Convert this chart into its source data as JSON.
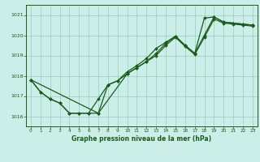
{
  "title": "Graphe pression niveau de la mer (hPa)",
  "background_color": "#cceee8",
  "grid_color": "#99ccbb",
  "line_color": "#1a5c1a",
  "xlim": [
    -0.5,
    23.5
  ],
  "ylim": [
    1015.5,
    1021.5
  ],
  "yticks": [
    1016,
    1017,
    1018,
    1019,
    1020,
    1021
  ],
  "xticks": [
    0,
    1,
    2,
    3,
    4,
    5,
    6,
    7,
    8,
    9,
    10,
    11,
    12,
    13,
    14,
    15,
    16,
    17,
    18,
    19,
    20,
    21,
    22,
    23
  ],
  "series1": [
    1017.8,
    1017.2,
    1016.85,
    1016.65,
    1016.15,
    1016.15,
    1016.15,
    1016.15,
    1017.55,
    1017.75,
    1018.1,
    1018.4,
    1018.7,
    1019.1,
    1019.6,
    1019.95,
    1019.5,
    1019.1,
    1020.85,
    1020.9,
    1020.65,
    1020.6,
    1020.55,
    1020.5
  ],
  "series2": [
    1017.8,
    1017.2,
    1016.85,
    1016.65,
    1016.15,
    1016.15,
    1016.15,
    1016.85,
    1017.55,
    1017.75,
    1018.2,
    1018.5,
    1018.85,
    1019.35,
    1019.65,
    1019.95,
    1019.5,
    1019.1,
    1020.0,
    1020.9,
    1020.65,
    1020.6,
    1020.55,
    1020.5
  ],
  "series3_x": [
    0,
    7,
    10,
    11,
    12,
    13,
    14,
    15,
    16,
    17,
    18,
    19,
    20,
    21,
    22,
    23
  ],
  "series3_y": [
    1017.8,
    1016.15,
    1018.1,
    1018.4,
    1018.7,
    1019.0,
    1019.5,
    1019.9,
    1019.45,
    1019.05,
    1019.9,
    1020.8,
    1020.6,
    1020.55,
    1020.5,
    1020.45
  ],
  "figsize": [
    3.2,
    2.0
  ],
  "dpi": 100
}
